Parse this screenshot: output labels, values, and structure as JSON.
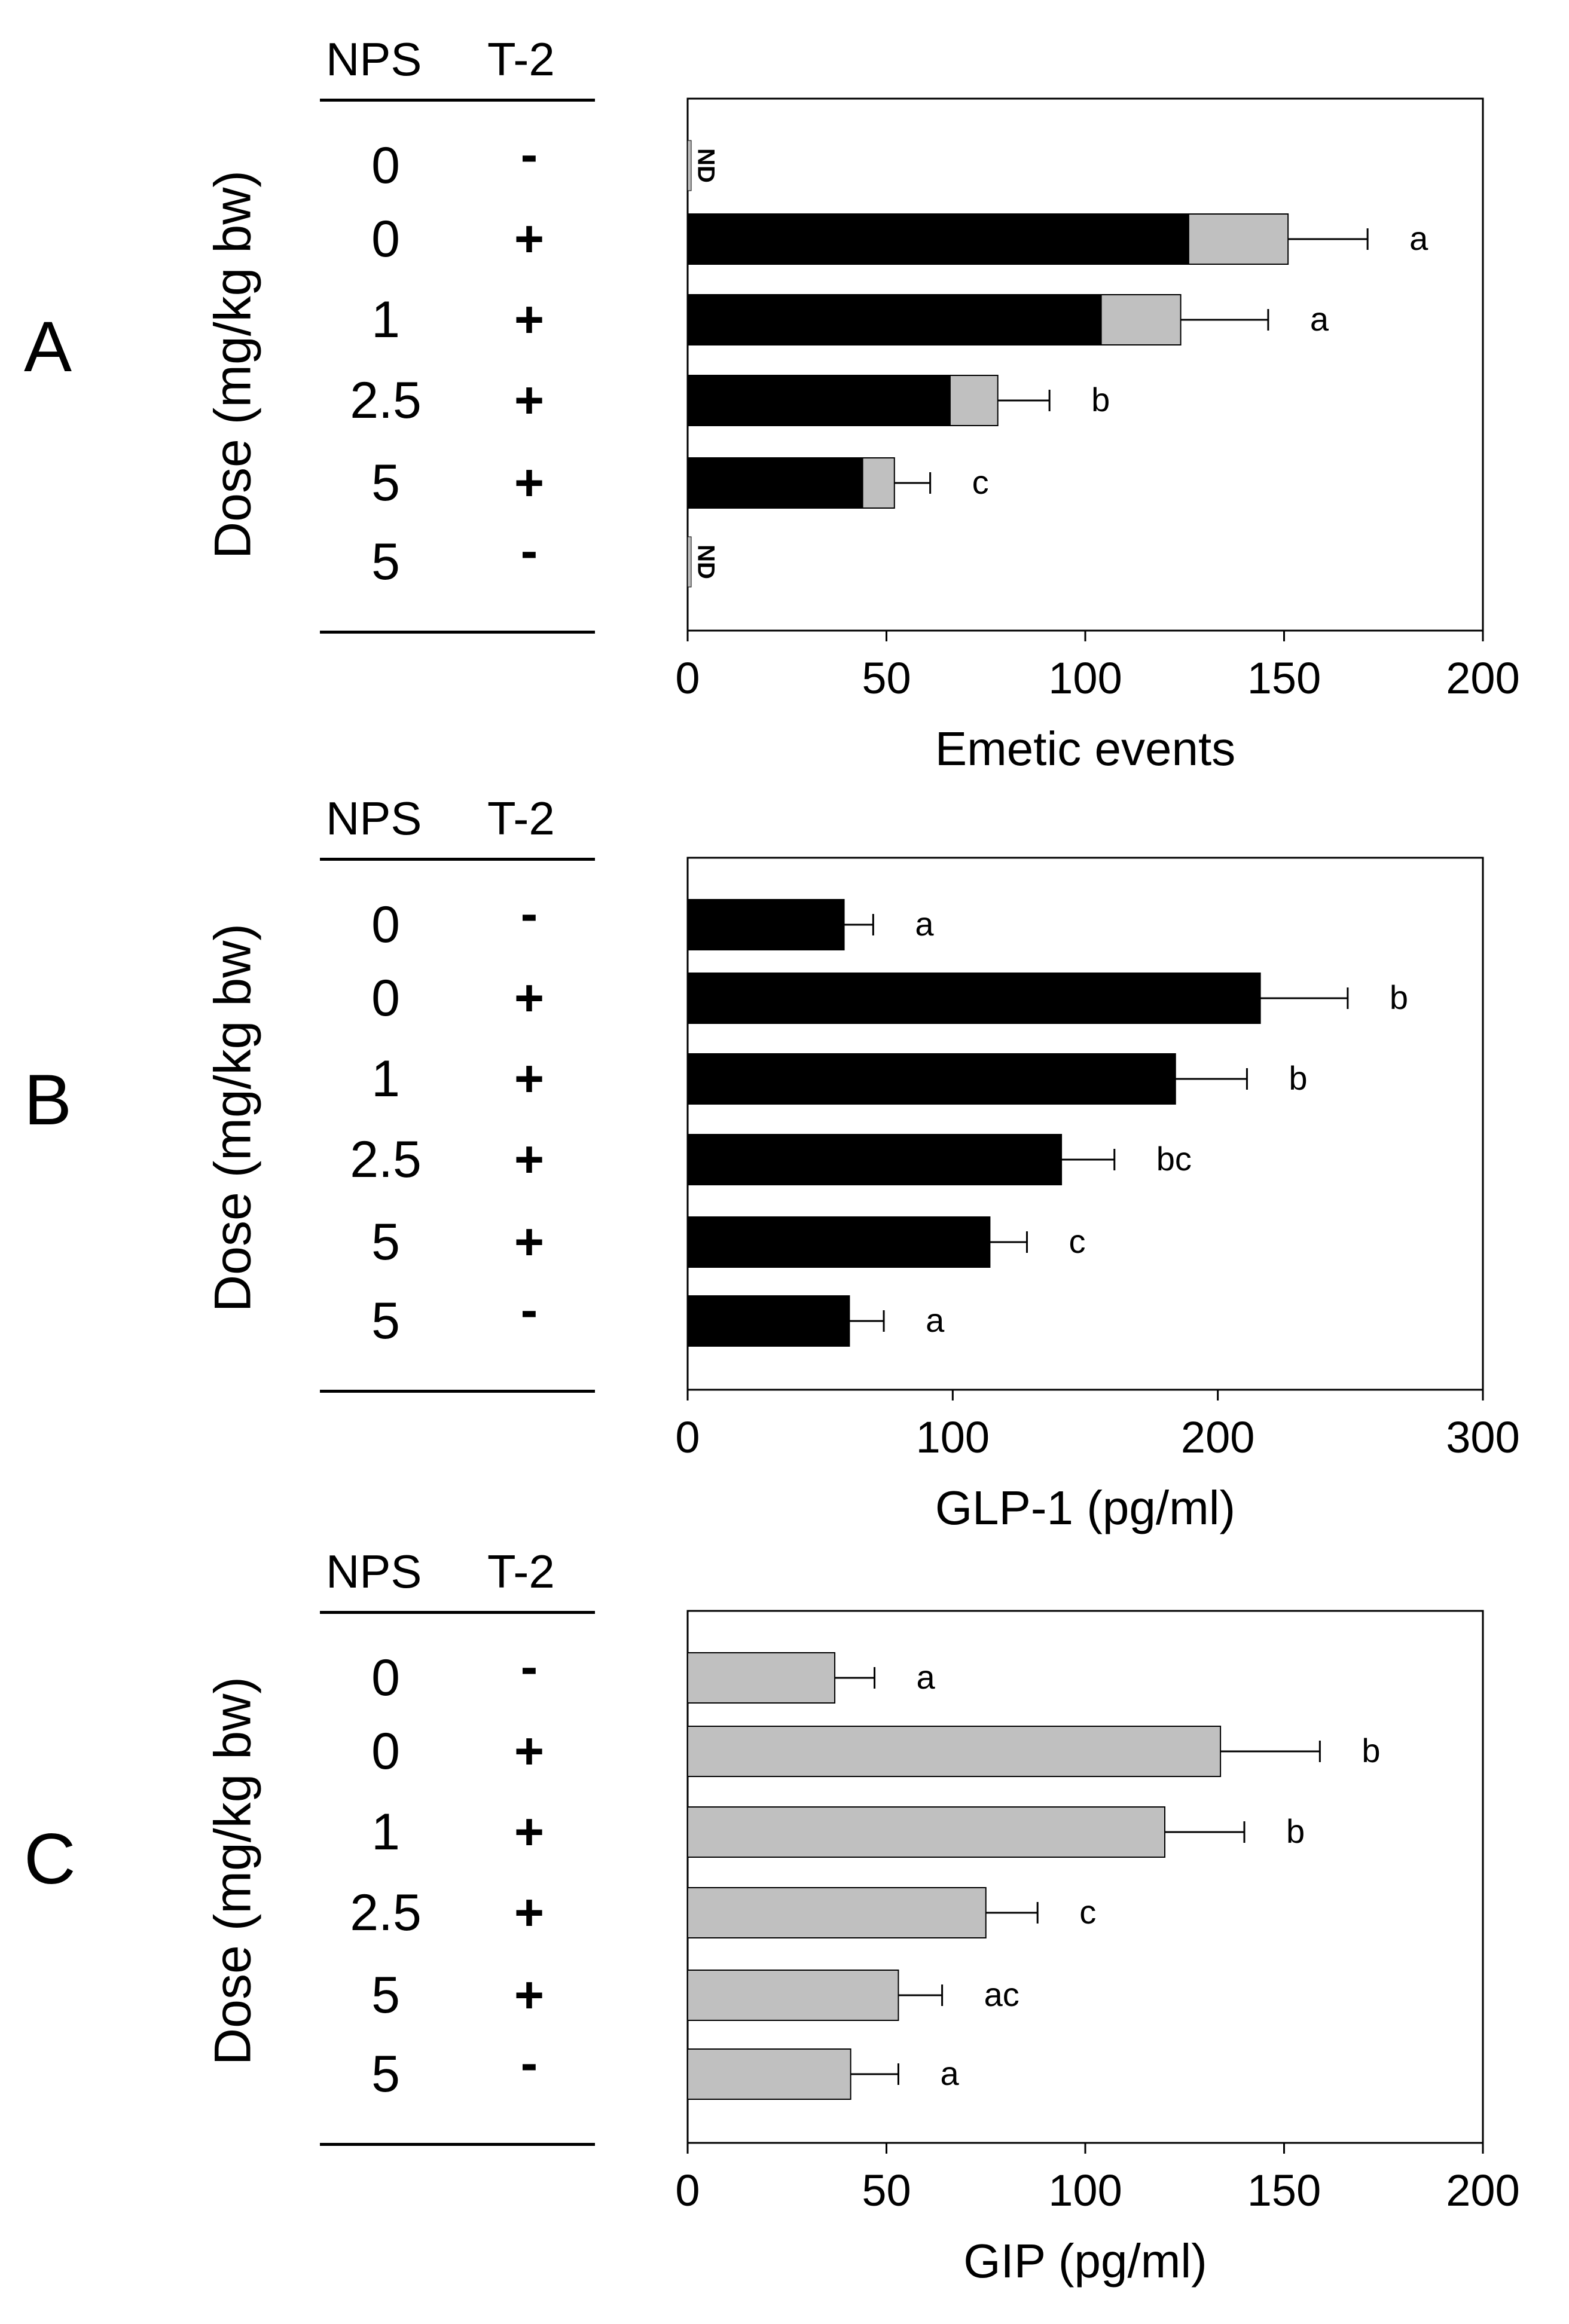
{
  "colors": {
    "black": "#000000",
    "gray": "#c0c0c0",
    "axis": "#000000"
  },
  "table_header": {
    "nps": "NPS",
    "t2": "T-2",
    "ylabel": "Dose (mg/kg bw)"
  },
  "rows": [
    {
      "nps": "0",
      "t2": "-"
    },
    {
      "nps": "0",
      "t2": "+"
    },
    {
      "nps": "1",
      "t2": "+"
    },
    {
      "nps": "2.5",
      "t2": "+"
    },
    {
      "nps": "5",
      "t2": "+"
    },
    {
      "nps": "5",
      "t2": "-"
    }
  ],
  "chart_data": [
    {
      "panel": "A",
      "type": "bar",
      "orientation": "horizontal",
      "xlabel": "Emetic events",
      "xlim": [
        0,
        200
      ],
      "xticks": [
        "0",
        "50",
        "100",
        "150",
        "200"
      ],
      "categories": [
        "0 / -",
        "0 / +",
        "1 / +",
        "2.5 / +",
        "5 / +",
        "5 / -"
      ],
      "series": [
        {
          "name": "black segment",
          "color": "#000000",
          "values": [
            0,
            126,
            104,
            66,
            44,
            0
          ]
        },
        {
          "name": "gray segment",
          "color": "#c0c0c0",
          "values": [
            0,
            25,
            20,
            12,
            8,
            0
          ]
        }
      ],
      "errors": [
        0,
        20,
        22,
        13,
        9,
        0
      ],
      "labels": [
        "ND",
        "a",
        "a",
        "b",
        "c",
        "ND"
      ]
    },
    {
      "panel": "B",
      "type": "bar",
      "orientation": "horizontal",
      "xlabel": "GLP-1 (pg/ml)",
      "xlim": [
        0,
        300
      ],
      "xticks": [
        "0",
        "100",
        "200",
        "300"
      ],
      "categories": [
        "0 / -",
        "0 / +",
        "1 / +",
        "2.5 / +",
        "5 / +",
        "5 / -"
      ],
      "series": [
        {
          "name": "GLP-1",
          "color": "#000000",
          "values": [
            59,
            216,
            184,
            141,
            114,
            61
          ]
        }
      ],
      "errors": [
        11,
        33,
        27,
        20,
        14,
        13
      ],
      "labels": [
        "a",
        "b",
        "b",
        "bc",
        "c",
        "a"
      ]
    },
    {
      "panel": "C",
      "type": "bar",
      "orientation": "horizontal",
      "xlabel": "GIP (pg/ml)",
      "xlim": [
        0,
        200
      ],
      "xticks": [
        "0",
        "50",
        "100",
        "150",
        "200"
      ],
      "categories": [
        "0 / -",
        "0 / +",
        "1 / +",
        "2.5 / +",
        "5 / +",
        "5 / -"
      ],
      "series": [
        {
          "name": "GIP",
          "color": "#c0c0c0",
          "values": [
            37,
            134,
            120,
            75,
            53,
            41
          ]
        }
      ],
      "errors": [
        10,
        25,
        20,
        13,
        11,
        12
      ],
      "labels": [
        "a",
        "b",
        "b",
        "c",
        "ac",
        "a"
      ]
    }
  ]
}
